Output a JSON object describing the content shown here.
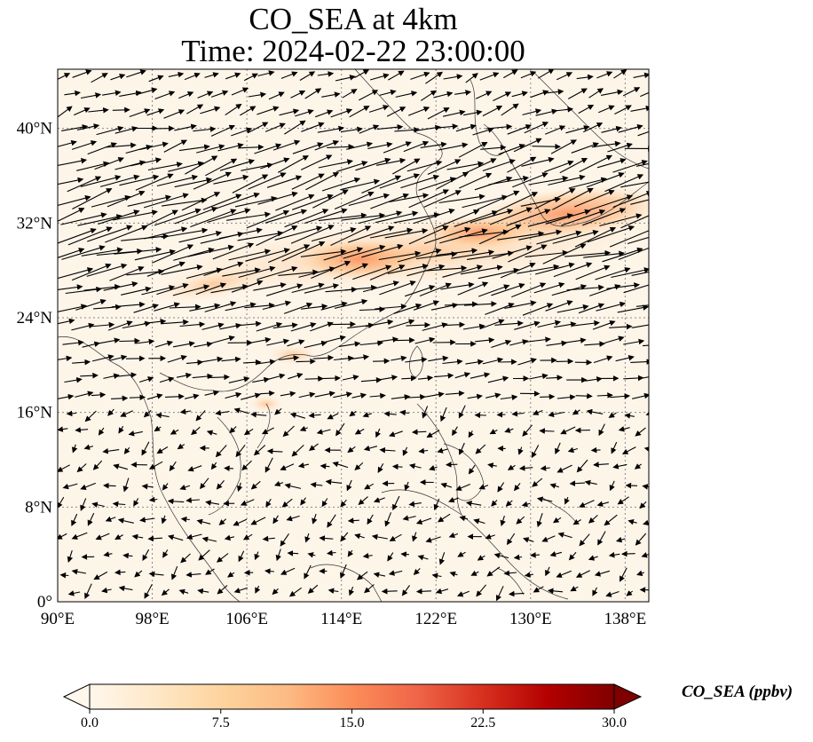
{
  "figure": {
    "title_line1": "CO_SEA at 4km",
    "title_line2": "Time: 2024-02-22 23:00:00"
  },
  "map": {
    "lon_range": [
      90,
      140
    ],
    "lat_range": [
      0,
      45
    ],
    "x_ticks": [
      "90°E",
      "98°E",
      "106°E",
      "114°E",
      "122°E",
      "130°E",
      "138°E"
    ],
    "x_tick_values": [
      90,
      98,
      106,
      114,
      122,
      130,
      138
    ],
    "y_ticks": [
      "0°",
      "8°N",
      "16°N",
      "24°N",
      "32°N",
      "40°N"
    ],
    "y_tick_values": [
      0,
      8,
      16,
      24,
      32,
      40
    ],
    "gridlines": "dotted",
    "wind_vectors": "quiver (black arrows)",
    "plume": {
      "description": "CO_SEA concentration band stretching from Indochina/southern China eastward across the East China Sea to Japan",
      "peak_value_ppbv_approx": 14
    }
  },
  "colorbar": {
    "label": "CO_SEA (ppbv)",
    "cmap": "OrRd",
    "ticks": [
      "0.0",
      "7.5",
      "15.0",
      "22.5",
      "30.0"
    ],
    "tick_values": [
      0,
      7.5,
      15,
      22.5,
      30
    ],
    "min": 0,
    "max": 30,
    "extend": "both",
    "colors": [
      "#fff7ec",
      "#fee8c8",
      "#fdd49e",
      "#fdbb84",
      "#fc8d59",
      "#ef6548",
      "#d7301f",
      "#b30000",
      "#7f0000"
    ]
  }
}
